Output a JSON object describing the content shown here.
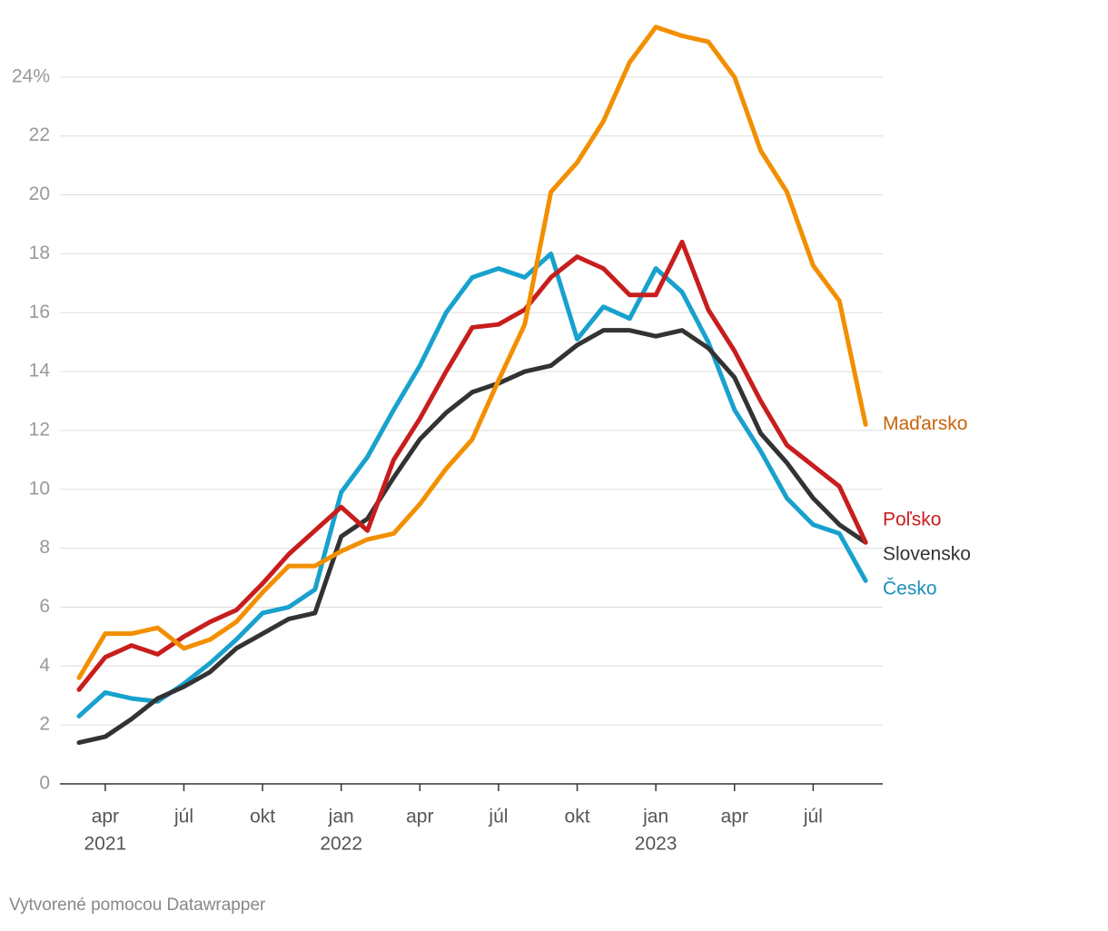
{
  "chart_data": {
    "type": "line",
    "x": [
      "2021-03",
      "2021-04",
      "2021-05",
      "2021-06",
      "2021-07",
      "2021-08",
      "2021-09",
      "2021-10",
      "2021-11",
      "2021-12",
      "2022-01",
      "2022-02",
      "2022-03",
      "2022-04",
      "2022-05",
      "2022-06",
      "2022-07",
      "2022-08",
      "2022-09",
      "2022-10",
      "2022-11",
      "2022-12",
      "2023-01",
      "2023-02",
      "2023-03",
      "2023-04",
      "2023-05",
      "2023-06",
      "2023-07",
      "2023-08",
      "2023-09"
    ],
    "xticks": [
      {
        "value": "2021-04",
        "label": "apr",
        "year": "2021"
      },
      {
        "value": "2021-07",
        "label": "júl"
      },
      {
        "value": "2021-10",
        "label": "okt"
      },
      {
        "value": "2022-01",
        "label": "jan",
        "year": "2022"
      },
      {
        "value": "2022-04",
        "label": "apr"
      },
      {
        "value": "2022-07",
        "label": "júl"
      },
      {
        "value": "2022-10",
        "label": "okt"
      },
      {
        "value": "2023-01",
        "label": "jan",
        "year": "2023"
      },
      {
        "value": "2023-04",
        "label": "apr"
      },
      {
        "value": "2023-07",
        "label": "júl"
      }
    ],
    "ylim": [
      0,
      26
    ],
    "yticks": [
      0,
      2,
      4,
      6,
      8,
      10,
      12,
      14,
      16,
      18,
      20,
      22,
      {
        "value": 24,
        "label": "24%"
      }
    ],
    "grid": true,
    "series": [
      {
        "name": "Česko",
        "color": "#18a1cd",
        "label_color": "#1a8fbb",
        "values": [
          2.3,
          3.1,
          2.9,
          2.8,
          3.4,
          4.1,
          4.9,
          5.8,
          6.0,
          6.6,
          9.9,
          11.1,
          12.7,
          14.2,
          16.0,
          17.2,
          17.5,
          17.2,
          18.0,
          15.1,
          16.2,
          15.8,
          17.5,
          16.7,
          15.0,
          12.7,
          11.3,
          9.7,
          8.8,
          8.5,
          6.9
        ]
      },
      {
        "name": "Slovensko",
        "color": "#333333",
        "label_color": "#333333",
        "values": [
          1.4,
          1.6,
          2.2,
          2.9,
          3.3,
          3.8,
          4.6,
          5.1,
          5.6,
          5.8,
          8.4,
          9.0,
          10.4,
          11.7,
          12.6,
          13.3,
          13.6,
          14.0,
          14.2,
          14.9,
          15.4,
          15.4,
          15.2,
          15.4,
          14.8,
          13.8,
          11.9,
          10.9,
          9.7,
          8.8,
          8.2
        ]
      },
      {
        "name": "Poľsko",
        "color": "#c71e1d",
        "label_color": "#c71e1d",
        "values": [
          3.2,
          4.3,
          4.7,
          4.4,
          5.0,
          5.5,
          5.9,
          6.8,
          7.8,
          8.6,
          9.4,
          8.6,
          11.0,
          12.4,
          14.0,
          15.5,
          15.6,
          16.1,
          17.2,
          17.9,
          17.5,
          16.6,
          16.6,
          18.4,
          16.1,
          14.7,
          13.0,
          11.5,
          10.8,
          10.1,
          8.2
        ]
      },
      {
        "name": "Maďarsko",
        "color": "#f28f00",
        "label_color": "#c8640a",
        "values": [
          3.6,
          5.1,
          5.1,
          5.3,
          4.6,
          4.9,
          5.5,
          6.5,
          7.4,
          7.4,
          7.9,
          8.3,
          8.5,
          9.5,
          10.7,
          11.7,
          13.7,
          15.6,
          20.1,
          21.1,
          22.5,
          24.5,
          25.7,
          25.4,
          25.2,
          24.0,
          21.5,
          20.1,
          17.6,
          16.4,
          12.2
        ]
      }
    ],
    "footer": "Vytvorené pomocou Datawrapper"
  }
}
